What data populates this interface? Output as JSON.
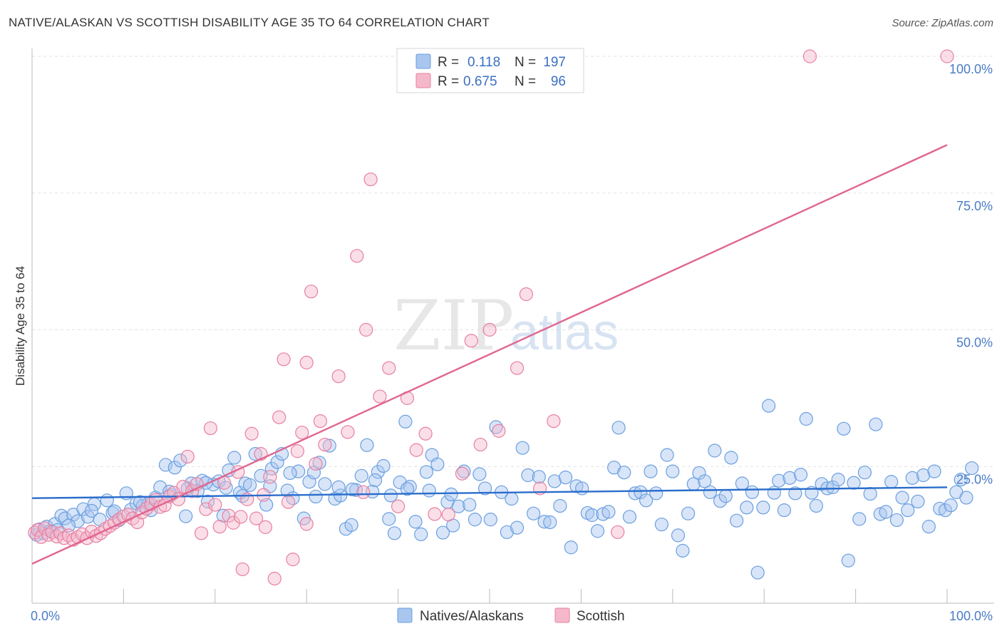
{
  "header": {
    "title": "NATIVE/ALASKAN VS SCOTTISH DISABILITY AGE 35 TO 64 CORRELATION CHART",
    "source": "Source: ZipAtlas.com"
  },
  "watermark": {
    "part1": "ZIP",
    "part2": "atlas"
  },
  "legend_top": {
    "rows": [
      {
        "r_label": "R =",
        "r_value": "0.118",
        "n_label": "N =",
        "n_value": "197",
        "color": "#a9c6ef"
      },
      {
        "r_label": "R =",
        "r_value": "0.675",
        "n_label": "N =",
        "n_value": "96",
        "color": "#f5b8cb"
      }
    ]
  },
  "legend_bottom": {
    "items": [
      {
        "label": "Natives/Alaskans",
        "color": "#a9c6ef"
      },
      {
        "label": "Scottish",
        "color": "#f5b8cb"
      }
    ]
  },
  "chart_data": {
    "type": "scatter",
    "ylabel": "Disability Age 35 to 64",
    "xlim": [
      0,
      100
    ],
    "ylim": [
      0,
      100
    ],
    "x_tick_labels": [
      {
        "value": 0,
        "label": "0.0%"
      },
      {
        "value": 100,
        "label": "100.0%"
      }
    ],
    "y_tick_labels": [
      {
        "value": 25,
        "label": "25.0%"
      },
      {
        "value": 50,
        "label": "50.0%"
      },
      {
        "value": 75,
        "label": "75.0%"
      },
      {
        "value": 100,
        "label": "100.0%"
      }
    ],
    "grid": "horizontal dashed",
    "series": [
      {
        "name": "Natives/Alaskans",
        "color": "#6b9fe0",
        "fill": "#a9c6ef",
        "trend": {
          "x": [
            0,
            100
          ],
          "y": [
            19.2,
            21.2
          ]
        },
        "points": [
          [
            0.5,
            12.5
          ],
          [
            0.8,
            13.5
          ],
          [
            1.2,
            12.8
          ],
          [
            1.6,
            14.0
          ],
          [
            2.0,
            13.2
          ],
          [
            2.5,
            14.5
          ],
          [
            3.2,
            16.0
          ],
          [
            3.6,
            15.5
          ],
          [
            4.5,
            16.2
          ],
          [
            5.0,
            15.0
          ],
          [
            5.6,
            17.2
          ],
          [
            6.1,
            15.8
          ],
          [
            6.8,
            18.1
          ],
          [
            7.4,
            15.3
          ],
          [
            8.2,
            18.8
          ],
          [
            8.8,
            16.5
          ],
          [
            9.5,
            15.2
          ],
          [
            10.3,
            20.1
          ],
          [
            10.8,
            17.1
          ],
          [
            11.4,
            18.3
          ],
          [
            12.1,
            17.8
          ],
          [
            12.7,
            18.2
          ],
          [
            13.5,
            19.3
          ],
          [
            14.0,
            21.2
          ],
          [
            14.6,
            25.3
          ],
          [
            15.2,
            19.8
          ],
          [
            15.6,
            24.8
          ],
          [
            16.2,
            26.1
          ],
          [
            16.8,
            15.9
          ],
          [
            17.4,
            21.9
          ],
          [
            18.1,
            20.5
          ],
          [
            18.6,
            22.4
          ],
          [
            19.2,
            18.6
          ],
          [
            19.8,
            21.7
          ],
          [
            20.4,
            22.3
          ],
          [
            20.9,
            16.0
          ],
          [
            21.5,
            24.3
          ],
          [
            22.1,
            26.6
          ],
          [
            22.7,
            20.2
          ],
          [
            23.3,
            21.9
          ],
          [
            23.8,
            21.6
          ],
          [
            24.4,
            27.3
          ],
          [
            25.0,
            23.3
          ],
          [
            25.6,
            18.0
          ],
          [
            26.2,
            24.6
          ],
          [
            26.8,
            25.8
          ],
          [
            27.3,
            27.3
          ],
          [
            27.9,
            20.6
          ],
          [
            28.5,
            19.2
          ],
          [
            29.1,
            24.1
          ],
          [
            29.7,
            15.5
          ],
          [
            30.3,
            22.2
          ],
          [
            30.8,
            23.9
          ],
          [
            31.4,
            25.7
          ],
          [
            32.0,
            21.8
          ],
          [
            32.5,
            28.8
          ],
          [
            33.1,
            19.1
          ],
          [
            33.7,
            19.7
          ],
          [
            34.3,
            13.6
          ],
          [
            34.9,
            14.3
          ],
          [
            35.4,
            20.7
          ],
          [
            36.0,
            23.3
          ],
          [
            36.6,
            28.9
          ],
          [
            37.2,
            20.4
          ],
          [
            37.8,
            24.0
          ],
          [
            38.4,
            25.1
          ],
          [
            39.0,
            15.4
          ],
          [
            39.6,
            12.8
          ],
          [
            40.2,
            22.1
          ],
          [
            40.8,
            33.2
          ],
          [
            41.3,
            21.3
          ],
          [
            41.9,
            14.9
          ],
          [
            42.5,
            12.6
          ],
          [
            43.1,
            24.0
          ],
          [
            43.7,
            27.1
          ],
          [
            44.3,
            25.4
          ],
          [
            44.9,
            12.9
          ],
          [
            45.4,
            18.5
          ],
          [
            46.0,
            14.2
          ],
          [
            46.6,
            17.7
          ],
          [
            47.2,
            24.1
          ],
          [
            47.8,
            18.0
          ],
          [
            48.4,
            15.3
          ],
          [
            48.9,
            23.6
          ],
          [
            49.5,
            21.0
          ],
          [
            50.1,
            15.3
          ],
          [
            50.7,
            32.2
          ],
          [
            51.3,
            20.3
          ],
          [
            51.9,
            13.0
          ],
          [
            52.4,
            19.1
          ],
          [
            53.0,
            13.8
          ],
          [
            53.6,
            28.4
          ],
          [
            54.2,
            23.4
          ],
          [
            54.8,
            16.4
          ],
          [
            55.4,
            23.1
          ],
          [
            56.0,
            14.9
          ],
          [
            56.6,
            14.8
          ],
          [
            57.1,
            22.3
          ],
          [
            57.7,
            17.8
          ],
          [
            58.3,
            23.0
          ],
          [
            58.9,
            10.2
          ],
          [
            59.5,
            21.4
          ],
          [
            60.1,
            21.0
          ],
          [
            60.7,
            16.5
          ],
          [
            61.2,
            16.1
          ],
          [
            61.8,
            13.2
          ],
          [
            62.4,
            16.3
          ],
          [
            63.0,
            16.7
          ],
          [
            63.6,
            24.8
          ],
          [
            64.1,
            32.1
          ],
          [
            64.7,
            23.9
          ],
          [
            65.3,
            15.8
          ],
          [
            65.9,
            20.1
          ],
          [
            66.5,
            20.3
          ],
          [
            67.1,
            18.8
          ],
          [
            67.6,
            24.1
          ],
          [
            68.2,
            20.1
          ],
          [
            68.8,
            14.4
          ],
          [
            69.4,
            27.1
          ],
          [
            70.0,
            24.1
          ],
          [
            70.6,
            12.4
          ],
          [
            71.1,
            9.6
          ],
          [
            71.7,
            16.4
          ],
          [
            72.3,
            21.8
          ],
          [
            72.9,
            23.8
          ],
          [
            73.5,
            22.3
          ],
          [
            74.1,
            20.3
          ],
          [
            74.6,
            27.9
          ],
          [
            75.2,
            18.7
          ],
          [
            75.8,
            19.6
          ],
          [
            76.4,
            26.6
          ],
          [
            77.0,
            15.1
          ],
          [
            77.6,
            21.9
          ],
          [
            78.1,
            17.5
          ],
          [
            78.7,
            20.3
          ],
          [
            79.3,
            5.6
          ],
          [
            79.9,
            17.5
          ],
          [
            80.5,
            36.1
          ],
          [
            81.1,
            20.2
          ],
          [
            81.6,
            22.4
          ],
          [
            82.2,
            17.0
          ],
          [
            82.8,
            22.9
          ],
          [
            83.4,
            20.1
          ],
          [
            84.0,
            23.5
          ],
          [
            84.6,
            33.7
          ],
          [
            85.2,
            20.2
          ],
          [
            85.7,
            17.8
          ],
          [
            86.3,
            21.8
          ],
          [
            86.9,
            21.0
          ],
          [
            87.5,
            21.2
          ],
          [
            88.1,
            22.6
          ],
          [
            88.7,
            31.9
          ],
          [
            89.2,
            7.8
          ],
          [
            89.8,
            22.0
          ],
          [
            90.4,
            15.4
          ],
          [
            91.0,
            23.9
          ],
          [
            91.6,
            20.0
          ],
          [
            92.2,
            32.7
          ],
          [
            92.7,
            16.3
          ],
          [
            93.3,
            16.7
          ],
          [
            93.9,
            22.2
          ],
          [
            94.5,
            15.2
          ],
          [
            95.1,
            19.3
          ],
          [
            95.7,
            17.0
          ],
          [
            96.2,
            22.9
          ],
          [
            96.8,
            18.6
          ],
          [
            97.4,
            23.4
          ],
          [
            98.0,
            14.0
          ],
          [
            98.6,
            24.1
          ],
          [
            99.2,
            17.3
          ],
          [
            99.8,
            17.0
          ],
          [
            100.4,
            17.9
          ],
          [
            101.0,
            20.3
          ],
          [
            101.5,
            22.6
          ],
          [
            102.1,
            19.3
          ],
          [
            102.7,
            24.7
          ],
          [
            2.8,
            13.4
          ],
          [
            4.0,
            14.2
          ],
          [
            6.5,
            16.9
          ],
          [
            9.0,
            16.8
          ],
          [
            11.8,
            18.5
          ],
          [
            13.0,
            17.0
          ],
          [
            15.0,
            20.4
          ],
          [
            17.0,
            21.0
          ],
          [
            19.0,
            22.0
          ],
          [
            21.2,
            21.1
          ],
          [
            23.0,
            19.6
          ],
          [
            26.0,
            21.4
          ],
          [
            28.2,
            23.8
          ],
          [
            31.0,
            19.5
          ],
          [
            33.5,
            21.2
          ],
          [
            35.0,
            20.8
          ],
          [
            37.5,
            22.5
          ],
          [
            39.2,
            19.7
          ],
          [
            41.0,
            20.9
          ],
          [
            43.4,
            20.6
          ],
          [
            45.8,
            19.9
          ]
        ]
      },
      {
        "name": "Scottish",
        "color": "#e87fa1",
        "fill": "#f5b8cb",
        "trend": {
          "x": [
            0,
            100
          ],
          "y": [
            7.2,
            83.8
          ]
        },
        "points": [
          [
            0.3,
            12.9
          ],
          [
            0.6,
            13.4
          ],
          [
            1.0,
            12.1
          ],
          [
            1.4,
            13.7
          ],
          [
            1.8,
            12.5
          ],
          [
            2.2,
            13.0
          ],
          [
            2.7,
            12.2
          ],
          [
            3.1,
            12.8
          ],
          [
            3.5,
            11.9
          ],
          [
            4.0,
            12.4
          ],
          [
            4.5,
            11.6
          ],
          [
            5.0,
            12.1
          ],
          [
            5.5,
            12.6
          ],
          [
            6.0,
            11.9
          ],
          [
            6.5,
            13.1
          ],
          [
            7.0,
            12.3
          ],
          [
            7.5,
            12.8
          ],
          [
            8.0,
            13.6
          ],
          [
            8.5,
            14.1
          ],
          [
            9.0,
            14.7
          ],
          [
            9.5,
            15.3
          ],
          [
            10.0,
            15.9
          ],
          [
            10.5,
            16.2
          ],
          [
            11.0,
            15.5
          ],
          [
            11.5,
            14.8
          ],
          [
            12.0,
            16.6
          ],
          [
            12.5,
            17.3
          ],
          [
            13.0,
            18.1
          ],
          [
            13.5,
            18.9
          ],
          [
            14.0,
            17.6
          ],
          [
            14.5,
            17.9
          ],
          [
            15.0,
            19.5
          ],
          [
            15.5,
            20.2
          ],
          [
            16.0,
            19.0
          ],
          [
            16.5,
            21.3
          ],
          [
            17.0,
            26.8
          ],
          [
            17.5,
            20.5
          ],
          [
            18.0,
            21.8
          ],
          [
            18.5,
            12.8
          ],
          [
            19.0,
            17.2
          ],
          [
            19.5,
            32.0
          ],
          [
            20.0,
            18.0
          ],
          [
            20.5,
            14.0
          ],
          [
            21.0,
            22.0
          ],
          [
            21.5,
            16.0
          ],
          [
            22.0,
            14.7
          ],
          [
            22.5,
            24.0
          ],
          [
            23.0,
            6.2
          ],
          [
            23.5,
            19.0
          ],
          [
            24.0,
            31.0
          ],
          [
            24.5,
            15.5
          ],
          [
            25.0,
            27.3
          ],
          [
            25.5,
            13.9
          ],
          [
            26.0,
            23.1
          ],
          [
            26.5,
            4.5
          ],
          [
            27.0,
            34.0
          ],
          [
            27.5,
            44.6
          ],
          [
            28.0,
            18.5
          ],
          [
            28.5,
            8.0
          ],
          [
            29.0,
            27.8
          ],
          [
            29.5,
            31.2
          ],
          [
            30.0,
            14.5
          ],
          [
            30.5,
            57.0
          ],
          [
            31.0,
            25.5
          ],
          [
            31.5,
            33.3
          ],
          [
            32.0,
            29.0
          ],
          [
            33.5,
            41.5
          ],
          [
            34.5,
            31.3
          ],
          [
            35.5,
            63.5
          ],
          [
            36.2,
            20.3
          ],
          [
            37.0,
            77.5
          ],
          [
            38.0,
            37.8
          ],
          [
            39.0,
            43.0
          ],
          [
            40.0,
            17.7
          ],
          [
            41.0,
            37.5
          ],
          [
            42.0,
            28.0
          ],
          [
            43.0,
            31.0
          ],
          [
            44.0,
            16.3
          ],
          [
            45.5,
            16.2
          ],
          [
            47.0,
            23.7
          ],
          [
            48.0,
            48.0
          ],
          [
            49.0,
            29.0
          ],
          [
            50.0,
            50.0
          ],
          [
            51.0,
            31.5
          ],
          [
            52.0,
            100.0
          ],
          [
            53.0,
            43.0
          ],
          [
            54.0,
            56.5
          ],
          [
            55.5,
            21.0
          ],
          [
            57.0,
            33.3
          ],
          [
            64.0,
            13.0
          ],
          [
            36.5,
            50.0
          ],
          [
            30.0,
            44.0
          ],
          [
            25.3,
            19.8
          ],
          [
            22.8,
            15.8
          ],
          [
            85.0,
            100.0
          ],
          [
            100.0,
            100.0
          ]
        ]
      }
    ]
  }
}
